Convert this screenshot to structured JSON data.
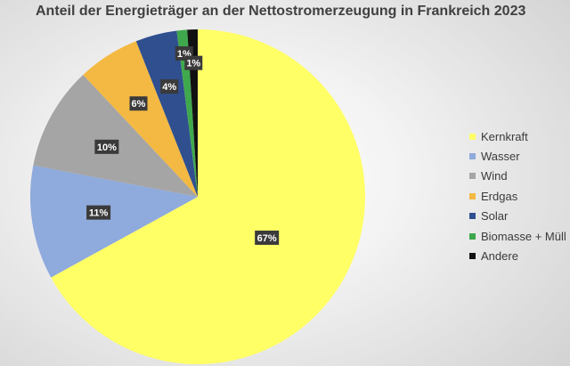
{
  "chart_data": {
    "type": "pie",
    "title": "Anteil der Energieträger an der Nettostromerzeugung in Frankreich 2023",
    "categories": [
      "Kernkraft",
      "Wasser",
      "Wind",
      "Erdgas",
      "Solar",
      "Biomasse + Müll",
      "Andere"
    ],
    "values": [
      67,
      11,
      10,
      6,
      4,
      1,
      1
    ],
    "labels": [
      "67%",
      "11%",
      "10%",
      "6%",
      "4%",
      "1%",
      "1%"
    ],
    "colors": [
      "#FFFF66",
      "#8FAADC",
      "#A5A5A5",
      "#F4B942",
      "#2F4F8F",
      "#3FA84C",
      "#111111"
    ],
    "legend_position": "right",
    "start_angle": "12 o'clock",
    "direction": "clockwise"
  }
}
